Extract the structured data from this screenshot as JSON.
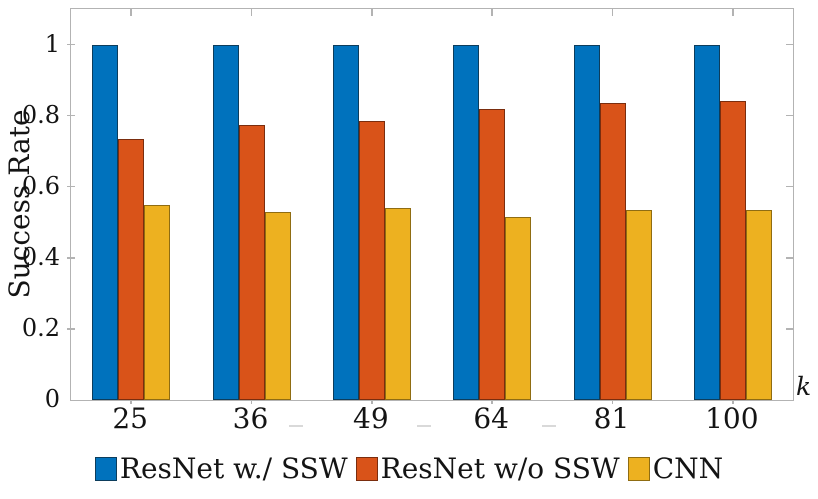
{
  "chart_data": {
    "type": "bar",
    "title": "",
    "ylabel": "Success Rate",
    "xlabel": "k",
    "categories": [
      "25",
      "36",
      "49",
      "64",
      "81",
      "100"
    ],
    "series": [
      {
        "name": "ResNet w./ SSW",
        "color": "#0072BD",
        "edge": "#0d3d5c",
        "values": [
          1,
          1,
          1,
          1,
          1,
          1
        ]
      },
      {
        "name": "ResNet w/o SSW",
        "color": "#D95319",
        "edge": "#7a2d0e",
        "values": [
          0.735,
          0.775,
          0.785,
          0.82,
          0.835,
          0.84
        ]
      },
      {
        "name": "CNN",
        "color": "#EDB120",
        "edge": "#8f6c12",
        "values": [
          0.55,
          0.53,
          0.54,
          0.515,
          0.535,
          0.535
        ]
      }
    ],
    "ylim": [
      0,
      1.1
    ],
    "yticks": [
      0,
      0.2,
      0.4,
      0.6,
      0.8,
      1
    ],
    "ytick_labels": [
      "0",
      "0.2",
      "0.4",
      "0.6",
      "0.8",
      "1"
    ],
    "legend_position": "bottom-center",
    "grid": false,
    "axis_color": "#b3b3b3",
    "text_color": "#141414"
  }
}
